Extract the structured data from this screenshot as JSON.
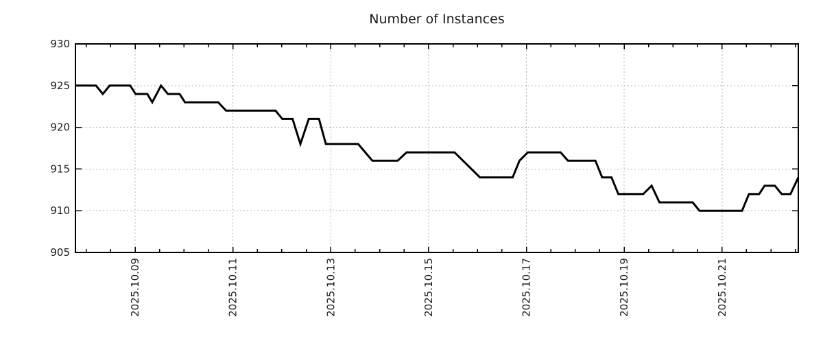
{
  "chart_style": {
    "background": "#ffffff",
    "text_color": "#1a1a1a",
    "grid_color": "#b0b0b0",
    "axis_color": "#000000",
    "line_color": "#000000",
    "line_width": 3
  },
  "chart_data": {
    "type": "line",
    "title": "Number of Instances",
    "xlabel": "",
    "ylabel": "",
    "legend": "none",
    "grid": "dotted gray on major ticks, both axes",
    "x_axis": {
      "unit": "day of 2025.10 (fractional)",
      "min": 7.78,
      "max": 22.56,
      "minor_tick_step": 0.5,
      "tick_label_rotation_deg": 90,
      "major_ticks": [
        {
          "day": 9,
          "label": "2025.10.09"
        },
        {
          "day": 11,
          "label": "2025.10.11"
        },
        {
          "day": 13,
          "label": "2025.10.13"
        },
        {
          "day": 15,
          "label": "2025.10.15"
        },
        {
          "day": 17,
          "label": "2025.10.17"
        },
        {
          "day": 19,
          "label": "2025.10.19"
        },
        {
          "day": 21,
          "label": "2025.10.21"
        }
      ]
    },
    "y_axis": {
      "min": 905,
      "max": 930,
      "tick_step": 5,
      "ticks": [
        905,
        910,
        915,
        920,
        925,
        930
      ]
    },
    "series": [
      {
        "name": "Number of Instances",
        "color": "#000000",
        "points": [
          [
            7.78,
            925
          ],
          [
            8.2,
            925
          ],
          [
            8.34,
            924
          ],
          [
            8.48,
            925
          ],
          [
            8.9,
            925
          ],
          [
            9.01,
            924
          ],
          [
            9.25,
            924
          ],
          [
            9.35,
            923
          ],
          [
            9.53,
            925
          ],
          [
            9.67,
            924
          ],
          [
            9.91,
            924
          ],
          [
            10.02,
            923
          ],
          [
            10.7,
            923
          ],
          [
            10.86,
            922
          ],
          [
            11.87,
            922
          ],
          [
            12.01,
            921
          ],
          [
            12.22,
            921
          ],
          [
            12.38,
            918
          ],
          [
            12.55,
            921
          ],
          [
            12.76,
            921
          ],
          [
            12.9,
            918
          ],
          [
            13.56,
            918
          ],
          [
            13.85,
            916
          ],
          [
            14.37,
            916
          ],
          [
            14.55,
            917
          ],
          [
            15.53,
            917
          ],
          [
            16.05,
            914
          ],
          [
            16.72,
            914
          ],
          [
            16.86,
            916
          ],
          [
            17.03,
            917
          ],
          [
            17.7,
            917
          ],
          [
            17.85,
            916
          ],
          [
            18.41,
            916
          ],
          [
            18.55,
            914
          ],
          [
            18.74,
            914
          ],
          [
            18.88,
            912
          ],
          [
            19.39,
            912
          ],
          [
            19.56,
            913
          ],
          [
            19.72,
            911
          ],
          [
            20.4,
            911
          ],
          [
            20.54,
            910
          ],
          [
            21.41,
            910
          ],
          [
            21.55,
            912
          ],
          [
            21.76,
            912
          ],
          [
            21.87,
            913
          ],
          [
            22.08,
            913
          ],
          [
            22.22,
            912
          ],
          [
            22.4,
            912
          ],
          [
            22.56,
            914
          ]
        ]
      }
    ]
  }
}
